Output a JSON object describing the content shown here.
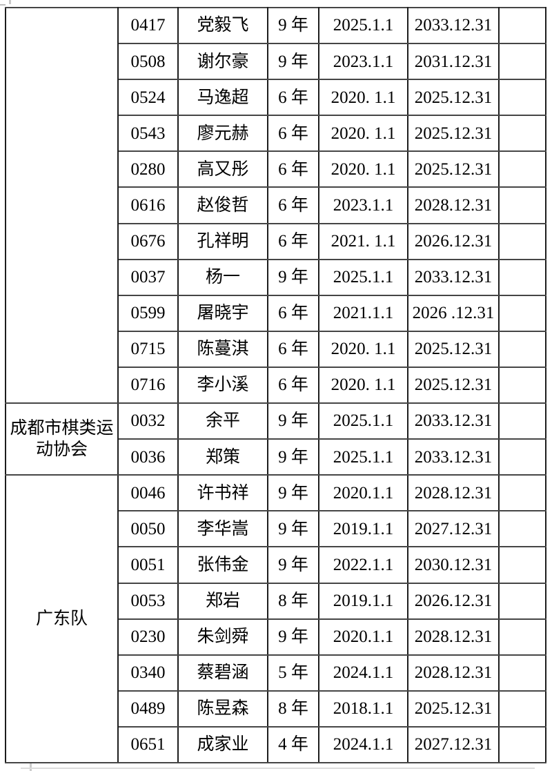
{
  "page": {
    "background": "#ffffff",
    "text_color": "#000000",
    "border_color": "#1c1c1c"
  },
  "table": {
    "groups": [
      {
        "org": "",
        "rows": [
          {
            "id": "0417",
            "name": "党毅飞",
            "years": "9 年",
            "start": "2025.1.1",
            "end": "2033.12.31"
          },
          {
            "id": "0508",
            "name": "谢尔豪",
            "years": "9 年",
            "start": "2023.1.1",
            "end": "2031.12.31"
          },
          {
            "id": "0524",
            "name": "马逸超",
            "years": "6 年",
            "start": "2020. 1.1",
            "end": "2025.12.31"
          },
          {
            "id": "0543",
            "name": "廖元赫",
            "years": "6 年",
            "start": "2020. 1.1",
            "end": "2025.12.31"
          },
          {
            "id": "0280",
            "name": "高又彤",
            "years": "6 年",
            "start": "2020. 1.1",
            "end": "2025.12.31"
          },
          {
            "id": "0616",
            "name": "赵俊哲",
            "years": "6 年",
            "start": "2023.1.1",
            "end": "2028.12.31"
          },
          {
            "id": "0676",
            "name": "孔祥明",
            "years": "6 年",
            "start": "2021. 1.1",
            "end": "2026.12.31"
          },
          {
            "id": "0037",
            "name": "杨一",
            "years": "9 年",
            "start": "2025.1.1",
            "end": "2033.12.31"
          },
          {
            "id": "0599",
            "name": "屠晓宇",
            "years": "6 年",
            "start": "2021.1.1",
            "end": "2026 .12.31"
          },
          {
            "id": "0715",
            "name": "陈蔓淇",
            "years": "6 年",
            "start": "2020. 1.1",
            "end": "2025.12.31"
          },
          {
            "id": "0716",
            "name": "李小溪",
            "years": "6 年",
            "start": "2020. 1.1",
            "end": "2025.12.31"
          }
        ]
      },
      {
        "org": "成都市棋类运动协会",
        "rows": [
          {
            "id": "0032",
            "name": "余平",
            "years": "9 年",
            "start": "2025.1.1",
            "end": "2033.12.31"
          },
          {
            "id": "0036",
            "name": "郑策",
            "years": "9 年",
            "start": "2025.1.1",
            "end": "2033.12.31"
          }
        ]
      },
      {
        "org": "广东队",
        "rows": [
          {
            "id": "0046",
            "name": "许书祥",
            "years": "9 年",
            "start": "2020.1.1",
            "end": "2028.12.31"
          },
          {
            "id": "0050",
            "name": "李华嵩",
            "years": "9 年",
            "start": "2019.1.1",
            "end": "2027.12.31"
          },
          {
            "id": "0051",
            "name": "张伟金",
            "years": "9 年",
            "start": "2022.1.1",
            "end": "2030.12.31"
          },
          {
            "id": "0053",
            "name": "郑岩",
            "years": "8 年",
            "start": "2019.1.1",
            "end": "2026.12.31"
          },
          {
            "id": "0230",
            "name": "朱剑舜",
            "years": "9 年",
            "start": "2020.1.1",
            "end": "2028.12.31"
          },
          {
            "id": "0340",
            "name": "蔡碧涵",
            "years": "5 年",
            "start": "2024.1.1",
            "end": "2028.12.31"
          },
          {
            "id": "0489",
            "name": "陈昱森",
            "years": "8 年",
            "start": "2018.1.1",
            "end": "2025.12.31"
          },
          {
            "id": "0651",
            "name": "成家业",
            "years": "4 年",
            "start": "2024.1.1",
            "end": "2027.12.31"
          }
        ]
      }
    ]
  }
}
